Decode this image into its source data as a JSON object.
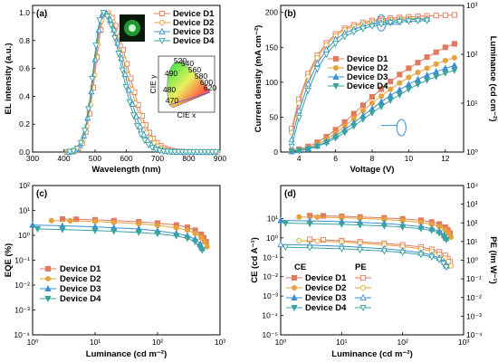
{
  "colors": {
    "D1": "#e07b5f",
    "D2": "#e6a23c",
    "D3": "#3b8fd4",
    "D4": "#3aa3a0"
  },
  "chart_data": [
    {
      "panel": "(a)",
      "type": "line",
      "xlabel": "Wavelength (nm)",
      "ylabel": "EL intensity (a.u.)",
      "xlim": [
        300,
        900
      ],
      "ylim": [
        0,
        1.0
      ],
      "xticks": [
        "300",
        "400",
        "500",
        "600",
        "700",
        "800",
        "900"
      ],
      "yticks": [
        "0.0",
        "0.2",
        "0.4",
        "0.6",
        "0.8",
        "1.0"
      ],
      "legend": [
        "Device D1",
        "Device D2",
        "Device D3",
        "Device D4"
      ],
      "inset": {
        "xlabel": "CIE x",
        "ylabel": "CIE y",
        "wavelength_labels": [
          "520",
          "540",
          "560",
          "580",
          "600",
          "620",
          "490",
          "480",
          "470"
        ]
      },
      "series": [
        {
          "name": "Device D1",
          "peak": 535,
          "sigma_left": 33,
          "sigma_right": 70
        },
        {
          "name": "Device D2",
          "peak": 532,
          "sigma_left": 32,
          "sigma_right": 67
        },
        {
          "name": "Device D3",
          "peak": 528,
          "sigma_left": 31,
          "sigma_right": 63
        },
        {
          "name": "Device D4",
          "peak": 525,
          "sigma_left": 30,
          "sigma_right": 60
        }
      ]
    },
    {
      "panel": "(b)",
      "type": "line",
      "xlabel": "Voltage (V)",
      "ylabel": "Current density (mA cm⁻²)",
      "ylabel2": "Luminance (cd cm⁻²)",
      "xlim": [
        3,
        13
      ],
      "ylim": [
        0,
        210
      ],
      "y2lim": [
        1,
        1000
      ],
      "xticks": [
        "4",
        "6",
        "8",
        "10",
        "12"
      ],
      "yticks": [
        "0",
        "50",
        "100",
        "150",
        "200"
      ],
      "y2ticks": [
        "10⁰",
        "10¹",
        "10²",
        "10³"
      ],
      "legend": [
        "Device D1",
        "Device D2",
        "Device D3",
        "Device D4"
      ],
      "series_current": [
        {
          "name": "Device D1",
          "x": [
            3.6,
            4,
            4.5,
            5,
            5.5,
            6,
            6.5,
            7,
            7.5,
            8,
            8.5,
            9,
            9.5,
            10,
            10.5,
            11,
            11.5,
            12,
            12.5
          ],
          "y": [
            2,
            4,
            8,
            14,
            22,
            32,
            43,
            55,
            67,
            79,
            90,
            101,
            111,
            120,
            128,
            136,
            143,
            150,
            155
          ]
        },
        {
          "name": "Device D2",
          "x": [
            3.6,
            4,
            4.5,
            5,
            5.5,
            6,
            6.5,
            7,
            7.5,
            8,
            8.5,
            9,
            9.5,
            10,
            10.5,
            11,
            11.5,
            12,
            12.5
          ],
          "y": [
            1.5,
            3,
            6,
            11,
            18,
            27,
            37,
            48,
            59,
            70,
            80,
            90,
            99,
            107,
            114,
            120,
            126,
            131,
            135
          ]
        },
        {
          "name": "Device D3",
          "x": [
            3.6,
            4,
            4.5,
            5,
            5.5,
            6,
            6.5,
            7,
            7.5,
            8,
            8.5,
            9,
            9.5,
            10,
            10.5,
            11,
            11.5,
            12,
            12.5
          ],
          "y": [
            1,
            2.5,
            5,
            9,
            15,
            23,
            32,
            42,
            52,
            62,
            72,
            81,
            89,
            97,
            104,
            110,
            115,
            120,
            124
          ]
        },
        {
          "name": "Device D4",
          "x": [
            3.6,
            4,
            4.5,
            5,
            5.5,
            6,
            6.5,
            7,
            7.5,
            8,
            8.5,
            9,
            9.5,
            10,
            10.5,
            11,
            11.5,
            12,
            12.5
          ],
          "y": [
            0.8,
            2,
            4,
            8,
            13,
            20,
            28,
            37,
            47,
            56,
            65,
            74,
            82,
            90,
            97,
            103,
            108,
            113,
            117
          ]
        }
      ],
      "series_luminance": [
        {
          "name": "Device D1",
          "x": [
            3.6,
            4,
            4.5,
            5,
            5.5,
            6,
            6.5,
            7,
            7.5,
            8,
            8.5,
            9,
            9.5,
            10,
            10.5,
            11,
            11.5,
            12,
            12.5
          ],
          "y": [
            3,
            12,
            40,
            95,
            170,
            260,
            340,
            400,
            450,
            490,
            520,
            545,
            565,
            580,
            595,
            610,
            620,
            630,
            640
          ]
        },
        {
          "name": "Device D2",
          "x": [
            3.6,
            4,
            4.5,
            5,
            5.5,
            6,
            6.5,
            7,
            7.5,
            8,
            8.5,
            9,
            9.5,
            10,
            10.5,
            11
          ],
          "y": [
            2.5,
            10,
            35,
            85,
            155,
            240,
            315,
            370,
            420,
            460,
            490,
            510,
            525,
            535,
            540,
            545
          ]
        },
        {
          "name": "Device D3",
          "x": [
            3.6,
            4,
            4.5,
            5,
            5.5,
            6,
            6.5,
            7,
            7.5,
            8,
            8.5,
            9,
            9.5,
            10,
            10.5,
            11
          ],
          "y": [
            1.8,
            7,
            25,
            65,
            125,
            200,
            270,
            325,
            375,
            415,
            450,
            475,
            495,
            510,
            520,
            525
          ]
        },
        {
          "name": "Device D4",
          "x": [
            3.6,
            4,
            4.5,
            5,
            5.5,
            6,
            6.5,
            7,
            7.5,
            8,
            8.5,
            9,
            9.5,
            10,
            10.5,
            11
          ],
          "y": [
            1.3,
            5,
            18,
            50,
            100,
            165,
            230,
            285,
            335,
            375,
            410,
            440,
            460,
            475,
            485,
            490
          ]
        }
      ]
    },
    {
      "panel": "(c)",
      "type": "line",
      "xlabel": "Luminance (cd m⁻²)",
      "ylabel": "EQE (%)",
      "xlim": [
        1,
        1000
      ],
      "ylim": [
        0.0001,
        100
      ],
      "xticks": [
        "10⁰",
        "10¹",
        "10²",
        "10³"
      ],
      "yticks": [
        "10⁻⁴",
        "10⁻³",
        "10⁻²",
        "10⁻¹",
        "10⁰",
        "10¹",
        "10²"
      ],
      "legend": [
        "Device D1",
        "Device D2",
        "Device D3",
        "Device D4"
      ],
      "series": [
        {
          "name": "Device D1",
          "x": [
            3,
            5,
            10,
            20,
            50,
            100,
            200,
            300,
            400,
            500,
            550,
            600
          ],
          "y": [
            4.5,
            4.4,
            4.2,
            3.9,
            3.5,
            3.1,
            2.6,
            2.1,
            1.6,
            1.1,
            0.8,
            0.55
          ]
        },
        {
          "name": "Device D2",
          "x": [
            2,
            4,
            10,
            20,
            50,
            100,
            200,
            300,
            400,
            500,
            560,
            620
          ],
          "y": [
            3.9,
            3.8,
            3.6,
            3.3,
            2.9,
            2.5,
            2.0,
            1.6,
            1.2,
            0.8,
            0.55,
            0.35
          ]
        },
        {
          "name": "Device D3",
          "x": [
            1,
            3,
            10,
            20,
            50,
            100,
            200,
            300,
            400,
            480,
            520
          ],
          "y": [
            2.6,
            2.4,
            2.2,
            2.0,
            1.8,
            1.5,
            1.2,
            0.95,
            0.7,
            0.45,
            0.3
          ]
        },
        {
          "name": "Device D4",
          "x": [
            1.2,
            3,
            10,
            20,
            50,
            100,
            200,
            300,
            400,
            470,
            520
          ],
          "y": [
            1.8,
            1.7,
            1.55,
            1.45,
            1.3,
            1.15,
            0.95,
            0.75,
            0.55,
            0.35,
            0.25
          ]
        }
      ]
    },
    {
      "panel": "(d)",
      "type": "line",
      "xlabel": "Luminance (cd m⁻²)",
      "ylabel": "CE (cd A⁻¹)",
      "ylabel2": "PE (lm W⁻¹)",
      "xlim": [
        1,
        1000
      ],
      "ylim": [
        1e-05,
        100
      ],
      "y2lim": [
        0.0001,
        10000
      ],
      "xticks": [
        "10⁰",
        "10¹",
        "10²",
        "10³"
      ],
      "yticks": [
        "10⁻⁵",
        "10⁻⁴",
        "10⁻³",
        "10⁻²",
        "10⁻¹",
        "10⁰",
        "10¹"
      ],
      "y2ticks": [
        "10⁻⁴",
        "10⁻³",
        "10⁻²",
        "10⁻¹",
        "10⁰",
        "10¹",
        "10²",
        "10³",
        "10⁴"
      ],
      "legend_headers": [
        "CE",
        "PE"
      ],
      "legend": [
        "Device D1",
        "Device D2",
        "Device D3",
        "Device D4"
      ],
      "series_ce": [
        {
          "name": "Device D1",
          "x": [
            3,
            5,
            10,
            20,
            50,
            100,
            200,
            300,
            400,
            500,
            550,
            600
          ],
          "y": [
            14,
            13.7,
            13,
            12,
            10.8,
            9.6,
            8.1,
            6.6,
            5.2,
            3.6,
            2.6,
            1.8
          ]
        },
        {
          "name": "Device D2",
          "x": [
            2,
            4,
            10,
            20,
            50,
            100,
            200,
            300,
            400,
            500,
            560,
            620
          ],
          "y": [
            12,
            11.7,
            11,
            10.2,
            9,
            7.8,
            6.3,
            5,
            3.8,
            2.6,
            1.8,
            1.1
          ]
        },
        {
          "name": "Device D3",
          "x": [
            1,
            3,
            10,
            20,
            50,
            100,
            200,
            300,
            400,
            480,
            520
          ],
          "y": [
            8,
            7.5,
            6.9,
            6.3,
            5.6,
            4.7,
            3.8,
            3,
            2.2,
            1.4,
            0.95
          ]
        },
        {
          "name": "Device D4",
          "x": [
            1.2,
            3,
            10,
            20,
            50,
            100,
            200,
            300,
            400,
            470,
            520
          ],
          "y": [
            5.8,
            5.4,
            5,
            4.6,
            4.1,
            3.6,
            3,
            2.4,
            1.8,
            1.1,
            0.8
          ]
        }
      ],
      "series_pe": [
        {
          "name": "Device D1",
          "x": [
            3,
            5,
            10,
            20,
            50,
            100,
            200,
            300,
            400,
            500,
            550,
            600
          ],
          "y": [
            13,
            12.3,
            11,
            9.6,
            8,
            6.6,
            5.1,
            3.8,
            2.8,
            1.8,
            1.2,
            0.8
          ]
        },
        {
          "name": "Device D2",
          "x": [
            2,
            4,
            10,
            20,
            50,
            100,
            200,
            300,
            400,
            500,
            560,
            620
          ],
          "y": [
            11,
            10.4,
            9.4,
            8.2,
            6.7,
            5.4,
            4.1,
            3,
            2.1,
            1.3,
            0.85,
            0.5
          ]
        },
        {
          "name": "Device D3",
          "x": [
            1,
            3,
            10,
            20,
            50,
            100,
            200,
            300,
            400,
            480,
            520
          ],
          "y": [
            7,
            6.4,
            5.6,
            4.9,
            4.1,
            3.3,
            2.5,
            1.9,
            1.3,
            0.8,
            0.5
          ]
        },
        {
          "name": "Device D4",
          "x": [
            1.2,
            3,
            10,
            20,
            50,
            100,
            200,
            300,
            400,
            470,
            520
          ],
          "y": [
            5,
            4.6,
            4.1,
            3.6,
            3.1,
            2.6,
            2,
            1.5,
            1.05,
            0.65,
            0.42
          ]
        }
      ]
    }
  ]
}
